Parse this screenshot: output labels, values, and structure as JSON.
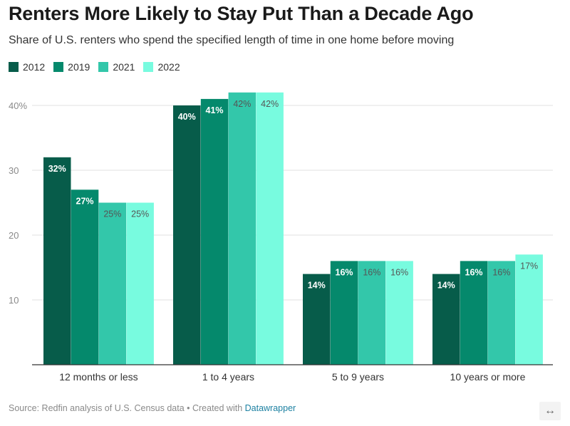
{
  "header": {
    "title": "Renters More Likely to Stay Put Than a Decade Ago",
    "subtitle": "Share of U.S. renters who spend the specified length of time in one home before moving"
  },
  "legend": [
    {
      "label": "2012",
      "color": "#075c4a"
    },
    {
      "label": "2019",
      "color": "#05896c"
    },
    {
      "label": "2021",
      "color": "#33c7aa"
    },
    {
      "label": "2022",
      "color": "#78fbdf"
    }
  ],
  "footer": {
    "source_text": "Source: Redfin analysis of U.S. Census data • Created with ",
    "tool_link": "Datawrapper",
    "resize_icon": "↔"
  },
  "chart_data": {
    "type": "bar",
    "categories": [
      "12 months or less",
      "1 to 4 years",
      "5 to 9 years",
      "10 years or more"
    ],
    "series": [
      {
        "name": "2012",
        "color": "#075c4a",
        "values": [
          32,
          40,
          14,
          14
        ],
        "labels": [
          "32%",
          "40%",
          "14%",
          "14%"
        ]
      },
      {
        "name": "2019",
        "color": "#05896c",
        "values": [
          27,
          41,
          16,
          16
        ],
        "labels": [
          "27%",
          "41%",
          "16%",
          "16%"
        ]
      },
      {
        "name": "2021",
        "color": "#33c7aa",
        "values": [
          25,
          42,
          16,
          16
        ],
        "labels": [
          "25%",
          "42%",
          "16%",
          "16%"
        ]
      },
      {
        "name": "2022",
        "color": "#78fbdf",
        "values": [
          25,
          42,
          16,
          17
        ],
        "labels": [
          "25%",
          "42%",
          "16%",
          "17%"
        ]
      }
    ],
    "yticks": [
      {
        "value": 10,
        "label": "10"
      },
      {
        "value": 20,
        "label": "20"
      },
      {
        "value": 30,
        "label": "30"
      },
      {
        "value": 40,
        "label": "40%"
      }
    ],
    "ylim": [
      0,
      45
    ],
    "grid": true,
    "legend_position": "top-left"
  }
}
